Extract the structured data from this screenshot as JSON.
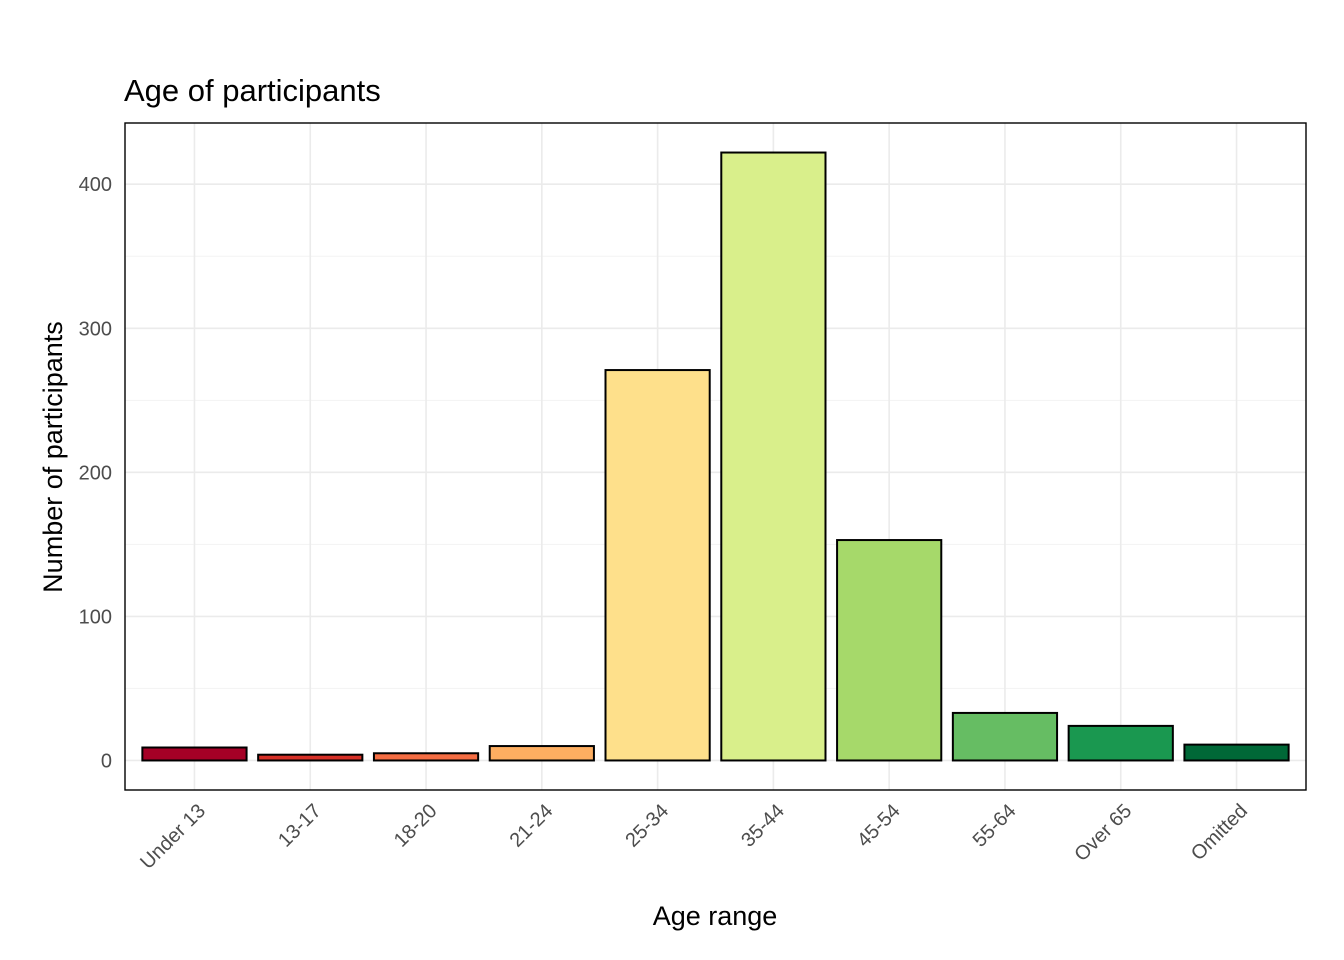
{
  "chart_data": {
    "type": "bar",
    "title": "Age of participants",
    "xlabel": "Age range",
    "ylabel": "Number of participants",
    "categories": [
      "Under 13",
      "13-17",
      "18-20",
      "21-24",
      "25-34",
      "35-44",
      "45-54",
      "55-64",
      "Over 65",
      "Omitted"
    ],
    "values": [
      9,
      4,
      5,
      10,
      271,
      422,
      153,
      33,
      24,
      11
    ],
    "colors": [
      "#a50026",
      "#d73027",
      "#f46d43",
      "#fdae61",
      "#fee08b",
      "#d9ef8b",
      "#a6d96a",
      "#66bd63",
      "#1a9850",
      "#006837"
    ],
    "ylim": [
      -20.5,
      442.5
    ],
    "yticks": [
      0,
      100,
      200,
      300,
      400
    ],
    "grid": true,
    "legend": "none"
  }
}
